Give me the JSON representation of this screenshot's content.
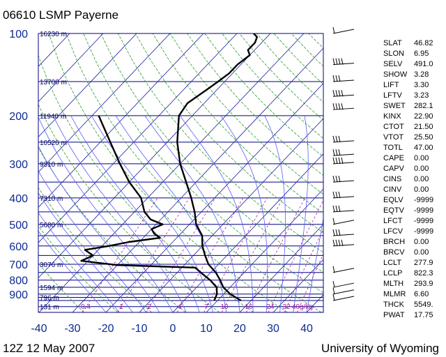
{
  "header": {
    "title": "06610 LSMP Payerne"
  },
  "footer": {
    "time": "12Z 12 May 2007",
    "source": "University of Wyoming"
  },
  "chart_data": {
    "type": "skew-t",
    "xlim": [
      -40,
      45
    ],
    "x_ticks": [
      -40,
      -30,
      -20,
      -10,
      0,
      10,
      20,
      30,
      40
    ],
    "pressure_ticks": [
      100,
      200,
      300,
      400,
      500,
      600,
      700,
      800,
      900
    ],
    "height_labels": [
      {
        "p": 100,
        "label": "16230 m"
      },
      {
        "p": 150,
        "label": "13700 m"
      },
      {
        "p": 200,
        "label": "11940 m"
      },
      {
        "p": 250,
        "label": "10520 m"
      },
      {
        "p": 300,
        "label": "9310 m"
      },
      {
        "p": 400,
        "label": "7310 m"
      },
      {
        "p": 500,
        "label": "5680 m"
      },
      {
        "p": 700,
        "label": "3076 m"
      },
      {
        "p": 850,
        "label": "1594 m"
      },
      {
        "p": 925,
        "label": "796 m"
      },
      {
        "p": 1000,
        "label": "131 m"
      }
    ],
    "mixing_ratio_labels": [
      "0.4",
      "1",
      "2",
      "4",
      "7",
      "10",
      "16",
      "24",
      "32",
      "40g/kg"
    ],
    "temperature": [
      {
        "p": 950,
        "t": 17
      },
      {
        "p": 900,
        "t": 12
      },
      {
        "p": 850,
        "t": 8
      },
      {
        "p": 800,
        "t": 5
      },
      {
        "p": 750,
        "t": 1.5
      },
      {
        "p": 700,
        "t": -3
      },
      {
        "p": 650,
        "t": -6.5
      },
      {
        "p": 600,
        "t": -10
      },
      {
        "p": 550,
        "t": -13
      },
      {
        "p": 500,
        "t": -18
      },
      {
        "p": 450,
        "t": -22
      },
      {
        "p": 400,
        "t": -27
      },
      {
        "p": 350,
        "t": -33
      },
      {
        "p": 300,
        "t": -40
      },
      {
        "p": 250,
        "t": -47
      },
      {
        "p": 200,
        "t": -54
      },
      {
        "p": 180,
        "t": -55
      },
      {
        "p": 160,
        "t": -53
      },
      {
        "p": 150,
        "t": -52
      },
      {
        "p": 140,
        "t": -51
      },
      {
        "p": 130,
        "t": -51
      },
      {
        "p": 120,
        "t": -50
      },
      {
        "p": 115,
        "t": -52
      },
      {
        "p": 108,
        "t": -52
      },
      {
        "p": 103,
        "t": -53
      },
      {
        "p": 100,
        "t": -55
      }
    ],
    "dewpoint": [
      {
        "p": 950,
        "t": 9
      },
      {
        "p": 900,
        "t": 8
      },
      {
        "p": 850,
        "t": 6
      },
      {
        "p": 800,
        "t": 2
      },
      {
        "p": 750,
        "t": -3
      },
      {
        "p": 720,
        "t": -6
      },
      {
        "p": 705,
        "t": -30
      },
      {
        "p": 680,
        "t": -42
      },
      {
        "p": 650,
        "t": -40
      },
      {
        "p": 620,
        "t": -44
      },
      {
        "p": 600,
        "t": -38
      },
      {
        "p": 580,
        "t": -33
      },
      {
        "p": 560,
        "t": -25
      },
      {
        "p": 540,
        "t": -28
      },
      {
        "p": 520,
        "t": -30
      },
      {
        "p": 500,
        "t": -28
      },
      {
        "p": 480,
        "t": -33
      },
      {
        "p": 450,
        "t": -37
      },
      {
        "p": 400,
        "t": -42
      },
      {
        "p": 350,
        "t": -50
      },
      {
        "p": 300,
        "t": -58
      },
      {
        "p": 250,
        "t": -67
      },
      {
        "p": 200,
        "t": -78
      }
    ],
    "winds": [
      {
        "p": 100,
        "type": "light"
      },
      {
        "p": 130,
        "type": "strong"
      },
      {
        "p": 150,
        "type": "medium"
      },
      {
        "p": 170,
        "type": "strong"
      },
      {
        "p": 190,
        "type": "strong"
      },
      {
        "p": 250,
        "type": "medium"
      },
      {
        "p": 280,
        "type": "medium"
      },
      {
        "p": 300,
        "type": "strong"
      },
      {
        "p": 350,
        "type": "medium"
      },
      {
        "p": 400,
        "type": "medium"
      },
      {
        "p": 450,
        "type": "medium"
      },
      {
        "p": 500,
        "type": "light"
      },
      {
        "p": 550,
        "type": "medium"
      },
      {
        "p": 600,
        "type": "strong"
      },
      {
        "p": 750,
        "type": "light"
      },
      {
        "p": 850,
        "type": "light"
      },
      {
        "p": 900,
        "type": "light"
      },
      {
        "p": 950,
        "type": "light"
      }
    ]
  },
  "indices": [
    {
      "key": "SLAT",
      "value": "46.82"
    },
    {
      "key": "SLON",
      "value": "6.95"
    },
    {
      "key": "SELV",
      "value": "491.0"
    },
    {
      "key": "SHOW",
      "value": "3.28"
    },
    {
      "key": "LIFT",
      "value": "3.30"
    },
    {
      "key": "LFTV",
      "value": "3.23"
    },
    {
      "key": "SWET",
      "value": "282.1"
    },
    {
      "key": "KINX",
      "value": "22.90"
    },
    {
      "key": "CTOT",
      "value": "21.50"
    },
    {
      "key": "VTOT",
      "value": "25.50"
    },
    {
      "key": "TOTL",
      "value": "47.00"
    },
    {
      "key": "CAPE",
      "value": "0.00"
    },
    {
      "key": "CAPV",
      "value": "0.00"
    },
    {
      "key": "CINS",
      "value": "0.00"
    },
    {
      "key": "CINV",
      "value": "0.00"
    },
    {
      "key": "EQLV",
      "value": "-9999"
    },
    {
      "key": "EQTV",
      "value": "-9999"
    },
    {
      "key": "LFCT",
      "value": "-9999"
    },
    {
      "key": "LFCV",
      "value": "-9999"
    },
    {
      "key": "BRCH",
      "value": "0.00"
    },
    {
      "key": "BRCV",
      "value": "0.00"
    },
    {
      "key": "LCLT",
      "value": "277.9"
    },
    {
      "key": "LCLP",
      "value": "822.3"
    },
    {
      "key": "MLTH",
      "value": "293.9"
    },
    {
      "key": "MLMR",
      "value": "6.60"
    },
    {
      "key": "THCK",
      "value": "5549."
    },
    {
      "key": "PWAT",
      "value": "17.75"
    }
  ],
  "colors": {
    "isobar": "#000080",
    "isotherm": "#1a1aa0",
    "dry_adiabat": "#2b9a2b",
    "moist_adiabat": "#5a5aff",
    "mixing_ratio": "#a020a0",
    "profile": "#000000"
  }
}
